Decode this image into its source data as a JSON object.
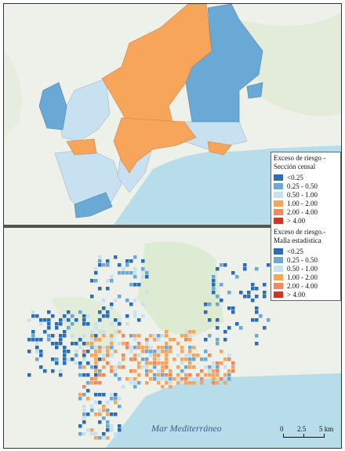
{
  "legend": {
    "section_title": "Exceso de riesgo - Sección censal",
    "grid_title": "Exceso de riesgo.- Malla estadística",
    "classes": [
      {
        "label": "<0.25",
        "color": "#2a6cb5"
      },
      {
        "label": "0.25 - 0.50",
        "color": "#6aa9d6"
      },
      {
        "label": "0.50 - 1.00",
        "color": "#c7e1f1"
      },
      {
        "label": "1.00 - 2.00",
        "color": "#f6a55b"
      },
      {
        "label": "2.00 - 4.00",
        "color": "#ee8a5c"
      },
      {
        "label": "> 4.00",
        "color": "#d73027"
      }
    ]
  },
  "map": {
    "sea_label": "Mar Mediterráneo",
    "sea_color": "#b7dcea",
    "land_color": "#eef0ea",
    "park_color": "#dcebd2"
  },
  "scale": {
    "ticks": [
      "0",
      "2.5",
      "5 km"
    ]
  }
}
